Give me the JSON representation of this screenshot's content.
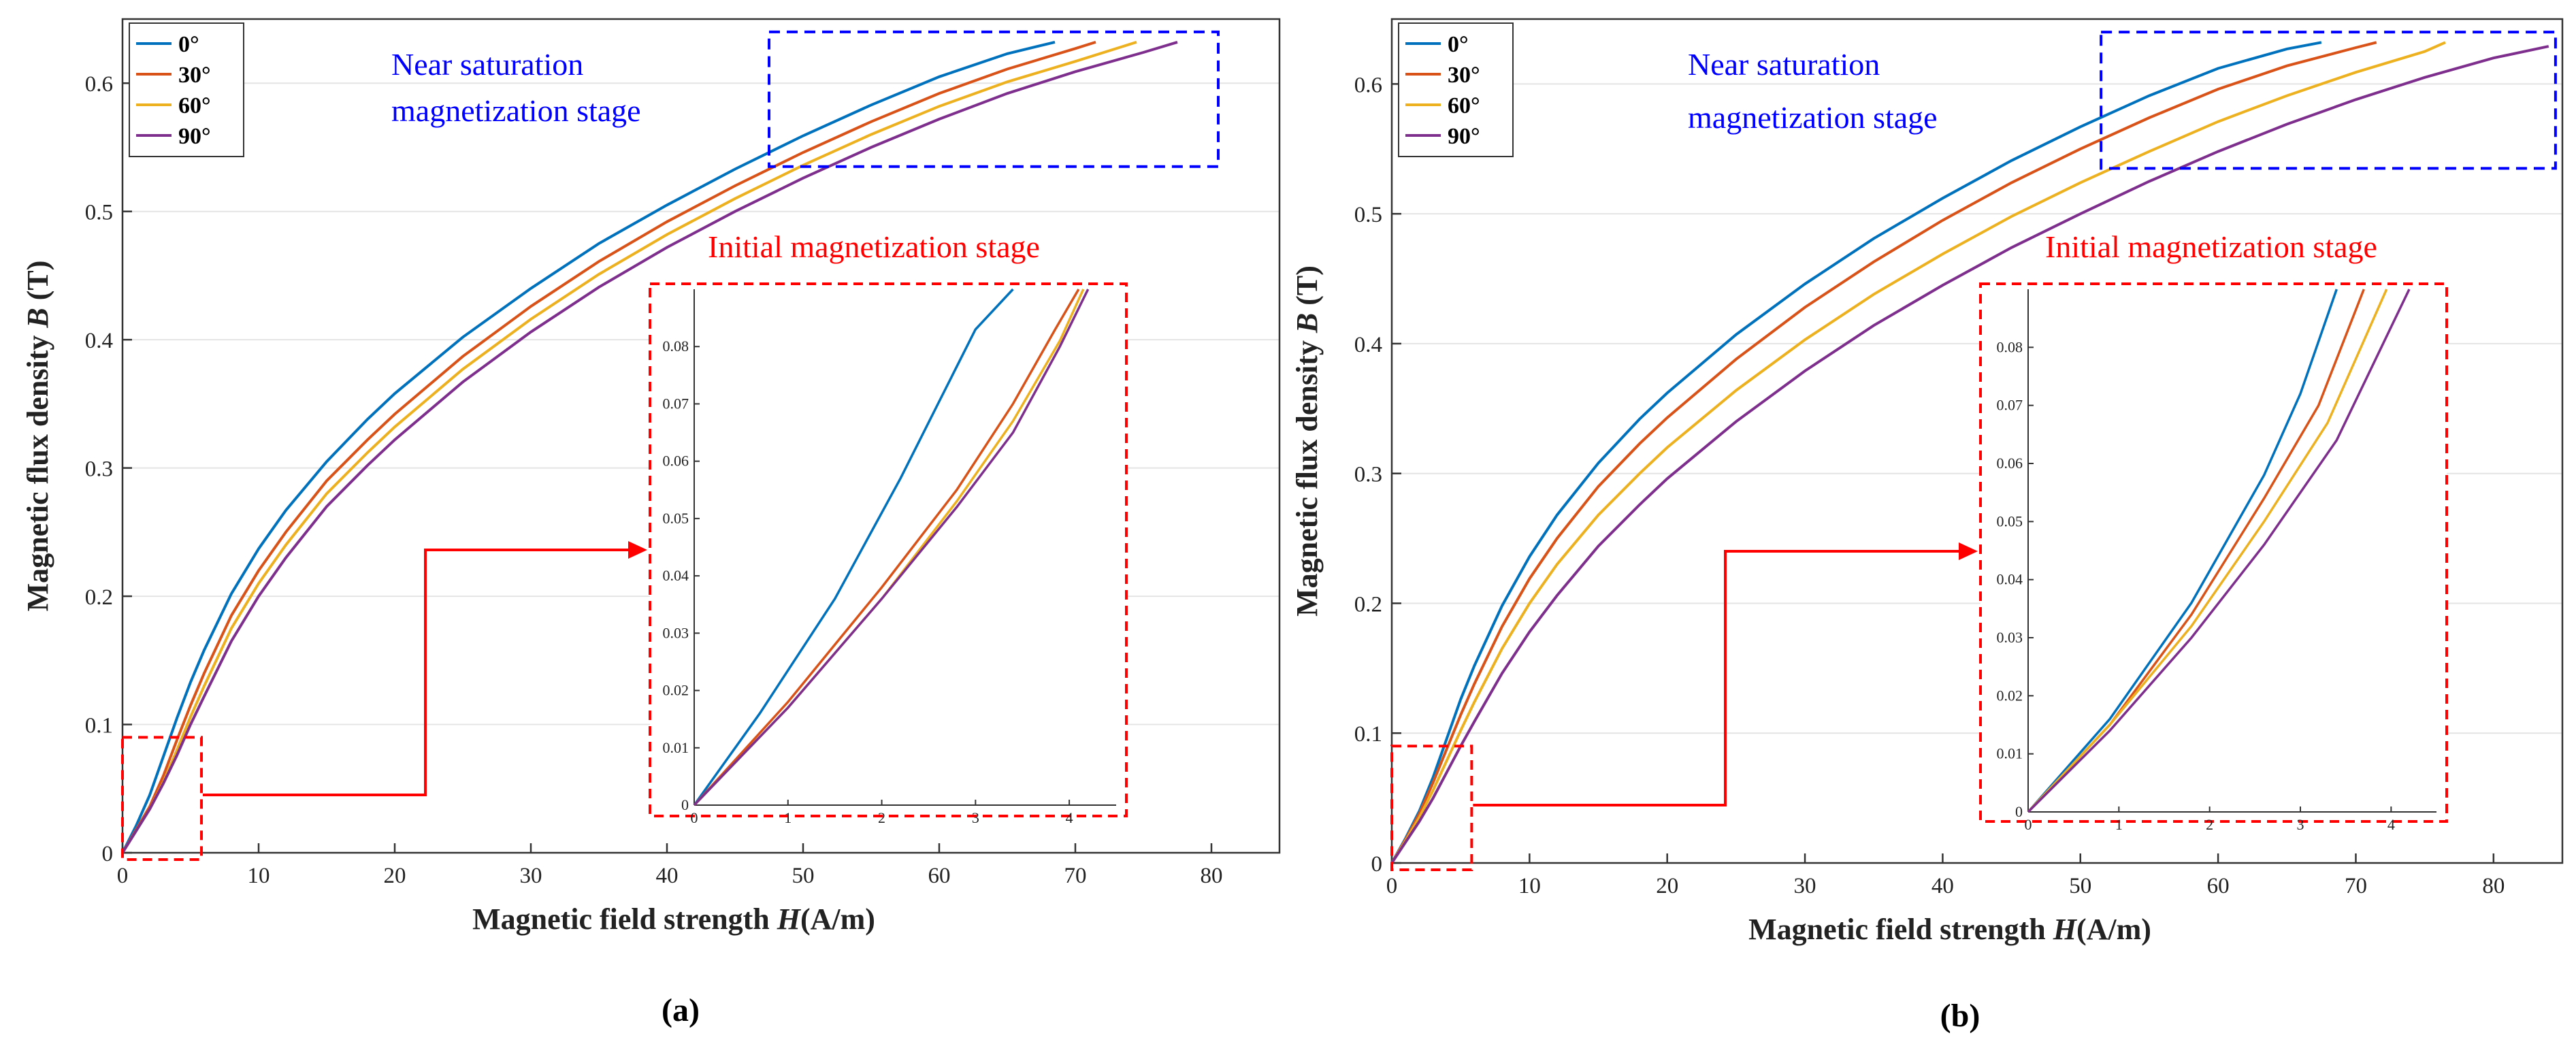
{
  "colors": {
    "series": [
      "#0072BD",
      "#D95319",
      "#EDB120",
      "#7E2F8E"
    ],
    "saturation_box": "#0000ff",
    "initial_box": "#ff0000"
  },
  "chart_data": [
    {
      "type": "line",
      "panel_label": "(a)",
      "xlabel_prefix": "Magnetic field strength",
      "xlabel_var": "H",
      "xlabel_suffix": "(A/m)",
      "ylabel_prefix": "Magnetic flux density",
      "ylabel_var": "B",
      "ylabel_suffix": "(T)",
      "xlim": [
        0,
        85
      ],
      "ylim": [
        0,
        0.65
      ],
      "xticks": [
        0,
        10,
        20,
        30,
        40,
        50,
        60,
        70,
        80
      ],
      "yticks": [
        0,
        0.1,
        0.2,
        0.3,
        0.4,
        0.5,
        0.6
      ],
      "grid": true,
      "legend_position": "top-left",
      "series": [
        {
          "name": "0°",
          "x": [
            0,
            1,
            2,
            3,
            4,
            5,
            6,
            8,
            10,
            12,
            15,
            18,
            20,
            25,
            30,
            35,
            40,
            45,
            50,
            55,
            60,
            65,
            68.5
          ],
          "y": [
            0,
            0.021,
            0.045,
            0.075,
            0.105,
            0.133,
            0.158,
            0.202,
            0.237,
            0.267,
            0.305,
            0.338,
            0.358,
            0.402,
            0.44,
            0.475,
            0.505,
            0.533,
            0.559,
            0.583,
            0.605,
            0.623,
            0.632
          ]
        },
        {
          "name": "30°",
          "x": [
            0,
            1,
            2,
            3,
            4,
            5,
            6,
            8,
            10,
            12,
            15,
            18,
            20,
            25,
            30,
            35,
            40,
            45,
            50,
            55,
            60,
            65,
            70,
            71.5
          ],
          "y": [
            0,
            0.018,
            0.036,
            0.06,
            0.088,
            0.115,
            0.14,
            0.185,
            0.22,
            0.25,
            0.29,
            0.322,
            0.342,
            0.387,
            0.426,
            0.461,
            0.492,
            0.52,
            0.546,
            0.57,
            0.592,
            0.611,
            0.627,
            0.632
          ]
        },
        {
          "name": "60°",
          "x": [
            0,
            1,
            2,
            3,
            4,
            5,
            6,
            8,
            10,
            12,
            15,
            18,
            20,
            25,
            30,
            35,
            40,
            45,
            50,
            55,
            60,
            65,
            70,
            74.5
          ],
          "y": [
            0,
            0.017,
            0.034,
            0.055,
            0.08,
            0.106,
            0.13,
            0.175,
            0.21,
            0.24,
            0.28,
            0.312,
            0.332,
            0.377,
            0.416,
            0.451,
            0.482,
            0.51,
            0.536,
            0.56,
            0.582,
            0.601,
            0.617,
            0.632
          ]
        },
        {
          "name": "90°",
          "x": [
            0,
            1,
            2,
            3,
            4,
            5,
            6,
            8,
            10,
            12,
            15,
            18,
            20,
            25,
            30,
            35,
            40,
            45,
            50,
            55,
            60,
            65,
            70,
            75,
            77.5
          ],
          "y": [
            0,
            0.017,
            0.034,
            0.054,
            0.076,
            0.1,
            0.122,
            0.165,
            0.2,
            0.23,
            0.27,
            0.302,
            0.322,
            0.367,
            0.406,
            0.441,
            0.472,
            0.5,
            0.526,
            0.55,
            0.572,
            0.592,
            0.609,
            0.624,
            0.632
          ]
        }
      ],
      "saturation_annotation": [
        "Near saturation",
        "magnetization stage"
      ],
      "saturation_box": {
        "x": [
          47.5,
          80.5
        ],
        "y": [
          0.535,
          0.64
        ]
      },
      "initial_annotation": "Initial magnetization stage",
      "initial_box": {
        "x": [
          0,
          5.8
        ],
        "y": [
          0,
          0.09
        ]
      },
      "inset": {
        "xlim": [
          0,
          4.5
        ],
        "ylim": [
          0,
          0.09
        ],
        "xticks": [
          0,
          1,
          2,
          3,
          4
        ],
        "yticks": [
          0,
          0.01,
          0.02,
          0.03,
          0.04,
          0.05,
          0.06,
          0.07,
          0.08
        ],
        "series": [
          {
            "name": "0°",
            "x": [
              0,
              0.7,
              1.5,
              2.2,
              2.6,
              3.0,
              3.4
            ],
            "y": [
              0,
              0.016,
              0.036,
              0.057,
              0.07,
              0.083,
              0.09
            ]
          },
          {
            "name": "30°",
            "x": [
              0,
              1.0,
              2.0,
              2.8,
              3.4,
              3.85,
              4.1
            ],
            "y": [
              0,
              0.018,
              0.038,
              0.055,
              0.07,
              0.083,
              0.09
            ]
          },
          {
            "name": "60°",
            "x": [
              0,
              1.0,
              2.0,
              2.8,
              3.4,
              3.9,
              4.15
            ],
            "y": [
              0,
              0.017,
              0.036,
              0.053,
              0.067,
              0.081,
              0.09
            ]
          },
          {
            "name": "90°",
            "x": [
              0,
              1.0,
              2.0,
              2.8,
              3.4,
              3.9,
              4.2
            ],
            "y": [
              0,
              0.017,
              0.036,
              0.052,
              0.065,
              0.08,
              0.09
            ]
          }
        ]
      }
    },
    {
      "type": "line",
      "panel_label": "(b)",
      "xlabel_prefix": "Magnetic field strength",
      "xlabel_var": "H",
      "xlabel_suffix": "(A/m)",
      "ylabel_prefix": "Magnetic flux density",
      "ylabel_var": "B",
      "ylabel_suffix": "(T)",
      "xlim": [
        0,
        85
      ],
      "ylim": [
        0,
        0.65
      ],
      "xticks": [
        0,
        10,
        20,
        30,
        40,
        50,
        60,
        70,
        80
      ],
      "yticks": [
        0,
        0.1,
        0.2,
        0.3,
        0.4,
        0.5,
        0.6
      ],
      "grid": true,
      "legend_position": "top-left",
      "series": [
        {
          "name": "0°",
          "x": [
            0,
            1,
            2,
            3,
            4,
            5,
            6,
            8,
            10,
            12,
            15,
            18,
            20,
            25,
            30,
            35,
            40,
            45,
            50,
            55,
            60,
            65,
            67.5
          ],
          "y": [
            0,
            0.019,
            0.04,
            0.066,
            0.096,
            0.126,
            0.152,
            0.198,
            0.236,
            0.268,
            0.308,
            0.342,
            0.362,
            0.407,
            0.446,
            0.481,
            0.512,
            0.541,
            0.567,
            0.591,
            0.612,
            0.627,
            0.632
          ]
        },
        {
          "name": "30°",
          "x": [
            0,
            1,
            2,
            3,
            4,
            5,
            6,
            8,
            10,
            12,
            15,
            18,
            20,
            25,
            30,
            35,
            40,
            45,
            50,
            55,
            60,
            65,
            70,
            71.5
          ],
          "y": [
            0,
            0.018,
            0.038,
            0.062,
            0.088,
            0.114,
            0.138,
            0.182,
            0.219,
            0.25,
            0.29,
            0.323,
            0.343,
            0.388,
            0.428,
            0.463,
            0.495,
            0.524,
            0.55,
            0.574,
            0.596,
            0.614,
            0.628,
            0.632
          ]
        },
        {
          "name": "60°",
          "x": [
            0,
            1,
            2,
            3,
            4,
            5,
            6,
            8,
            10,
            12,
            15,
            18,
            20,
            25,
            30,
            35,
            40,
            45,
            50,
            55,
            60,
            65,
            70,
            75,
            76.5
          ],
          "y": [
            0,
            0.017,
            0.035,
            0.056,
            0.079,
            0.102,
            0.124,
            0.165,
            0.2,
            0.23,
            0.268,
            0.3,
            0.32,
            0.364,
            0.403,
            0.438,
            0.469,
            0.498,
            0.524,
            0.548,
            0.571,
            0.591,
            0.609,
            0.625,
            0.632
          ]
        },
        {
          "name": "90°",
          "x": [
            0,
            1,
            2,
            3,
            4,
            5,
            6,
            8,
            10,
            12,
            15,
            18,
            20,
            25,
            30,
            35,
            40,
            45,
            50,
            55,
            60,
            65,
            70,
            75,
            80,
            84
          ],
          "y": [
            0,
            0.016,
            0.032,
            0.05,
            0.07,
            0.09,
            0.109,
            0.146,
            0.178,
            0.206,
            0.244,
            0.276,
            0.296,
            0.34,
            0.379,
            0.414,
            0.445,
            0.474,
            0.5,
            0.525,
            0.548,
            0.569,
            0.588,
            0.605,
            0.62,
            0.629
          ]
        }
      ],
      "saturation_annotation": [
        "Near saturation",
        "magnetization stage"
      ],
      "saturation_box": {
        "x": [
          51.5,
          84.5
        ],
        "y": [
          0.535,
          0.64
        ]
      },
      "initial_annotation": "Initial magnetization stage",
      "initial_box": {
        "x": [
          0,
          5.8
        ],
        "y": [
          0,
          0.09
        ]
      },
      "inset": {
        "xlim": [
          0,
          4.5
        ],
        "ylim": [
          0,
          0.09
        ],
        "xticks": [
          0,
          1,
          2,
          3,
          4
        ],
        "yticks": [
          0,
          0.01,
          0.02,
          0.03,
          0.04,
          0.05,
          0.06,
          0.07,
          0.08
        ],
        "series": [
          {
            "name": "0°",
            "x": [
              0,
              0.9,
              1.8,
              2.6,
              3.0,
              3.4
            ],
            "y": [
              0,
              0.016,
              0.036,
              0.058,
              0.072,
              0.09
            ]
          },
          {
            "name": "30°",
            "x": [
              0,
              0.9,
              1.8,
              2.6,
              3.2,
              3.7
            ],
            "y": [
              0,
              0.015,
              0.034,
              0.054,
              0.07,
              0.09
            ]
          },
          {
            "name": "60°",
            "x": [
              0,
              0.9,
              1.8,
              2.6,
              3.3,
              3.95
            ],
            "y": [
              0,
              0.015,
              0.032,
              0.05,
              0.067,
              0.09
            ]
          },
          {
            "name": "90°",
            "x": [
              0,
              0.9,
              1.8,
              2.6,
              3.4,
              4.2
            ],
            "y": [
              0,
              0.014,
              0.03,
              0.046,
              0.064,
              0.09
            ]
          }
        ]
      }
    }
  ]
}
